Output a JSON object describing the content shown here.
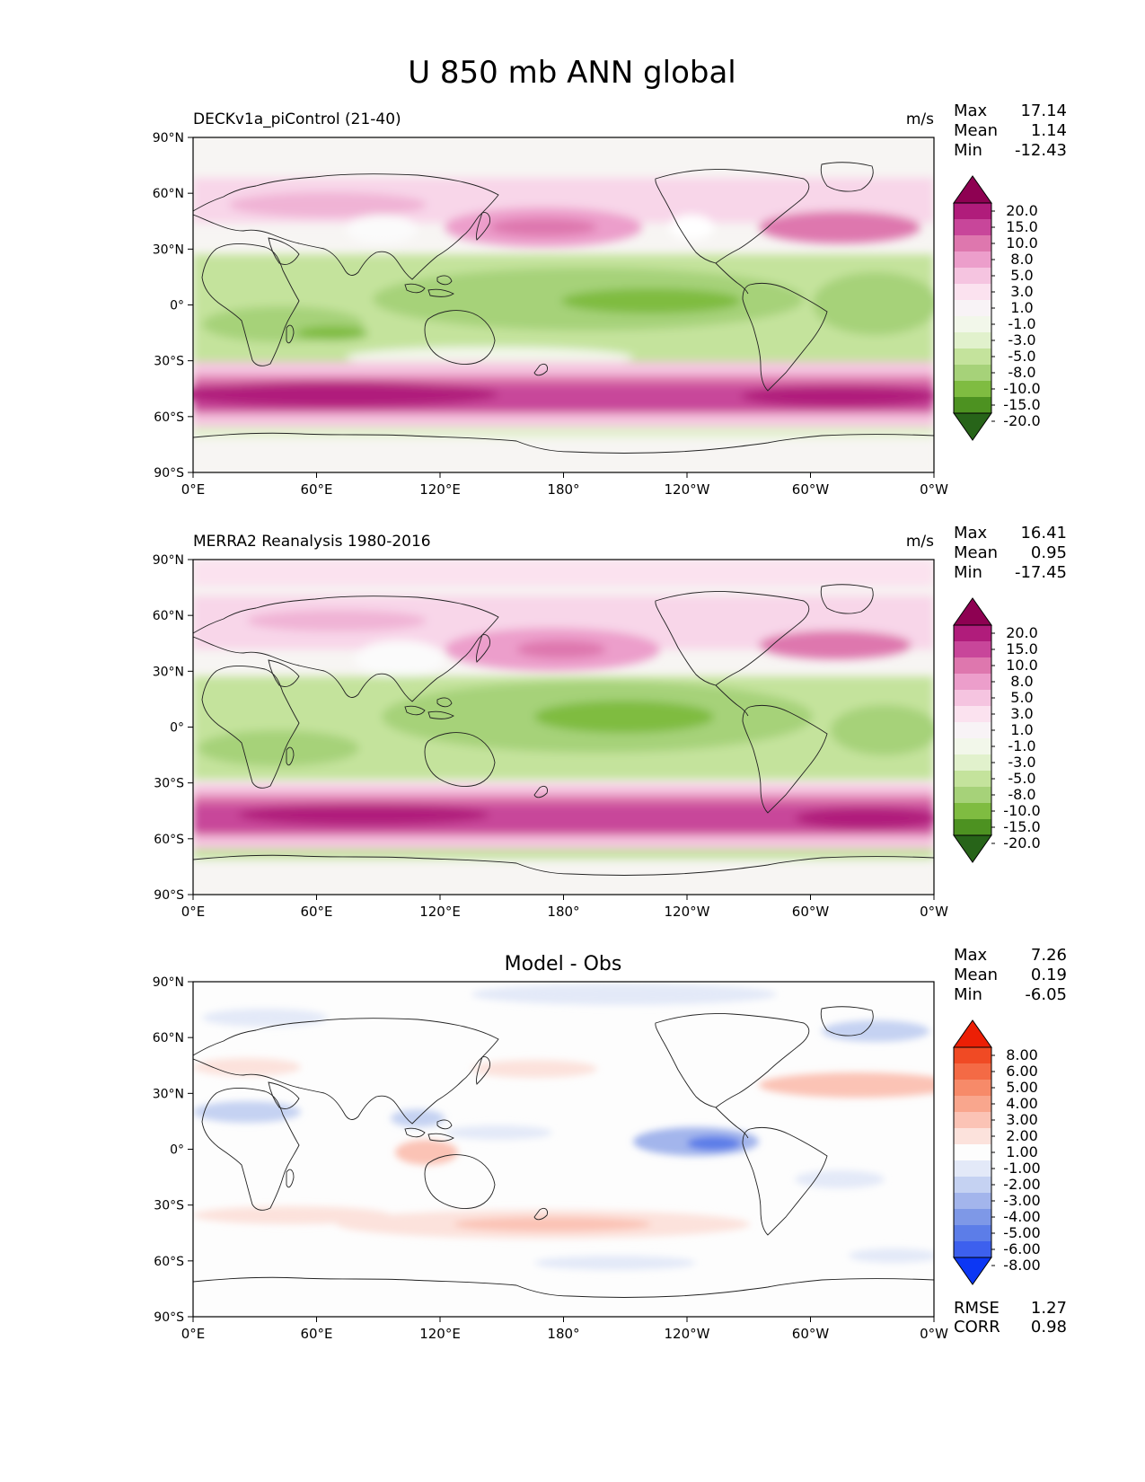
{
  "figure": {
    "title": "U 850 mb ANN global"
  },
  "axes": {
    "lat_ticks": [
      "90°N",
      "60°N",
      "30°N",
      "0°",
      "30°S",
      "60°S",
      "90°S"
    ],
    "lon_ticks": [
      "0°E",
      "60°E",
      "120°E",
      "180°",
      "120°W",
      "60°W",
      "0°W"
    ]
  },
  "stats_labels": {
    "max": "Max",
    "mean": "Mean",
    "min": "Min",
    "rmse": "RMSE",
    "corr": "CORR"
  },
  "colors": {
    "full_field": [
      "#276419",
      "#4d9221",
      "#7fbc41",
      "#a6d279",
      "#c4e39c",
      "#e1f1cc",
      "#f2f7ea",
      "#f8f3f6",
      "#fbe2ef",
      "#f5c4e0",
      "#ec9ecb",
      "#de77ae",
      "#c8469a",
      "#b01c7b",
      "#8e0152"
    ],
    "diff": [
      "#0c37f4",
      "#3d60ee",
      "#5c7de8",
      "#7e98e7",
      "#a3b5ec",
      "#c5d2f2",
      "#e3e9f8",
      "#fdfdfd",
      "#fce2dc",
      "#fbc3b5",
      "#f9a68d",
      "#f78a69",
      "#f46a45",
      "#f04a24",
      "#ec1f05"
    ]
  },
  "chart_data": [
    {
      "type": "heatmap",
      "name": "DECKv1a_piControl (21-40)",
      "title": "DECKv1a_piControl (21-40)",
      "units": "m/s",
      "xlim": [
        0,
        360
      ],
      "ylim": [
        -90,
        90
      ],
      "stats": {
        "max": "17.14",
        "mean": "1.14",
        "min": "-12.43"
      },
      "colorbar_levels": [
        "20.0",
        "15.0",
        "10.0",
        "8.0",
        "5.0",
        "3.0",
        "1.0",
        "-1.0",
        "-3.0",
        "-5.0",
        "-8.0",
        "-10.0",
        "-15.0",
        "-20.0"
      ],
      "zonal_mean_profile": [
        {
          "lat": 80,
          "u": 1.5
        },
        {
          "lat": 60,
          "u": 4
        },
        {
          "lat": 45,
          "u": 8
        },
        {
          "lat": 30,
          "u": 2
        },
        {
          "lat": 15,
          "u": -6
        },
        {
          "lat": 0,
          "u": -4
        },
        {
          "lat": -15,
          "u": -6
        },
        {
          "lat": -30,
          "u": 3
        },
        {
          "lat": -50,
          "u": 12
        },
        {
          "lat": -65,
          "u": 4
        },
        {
          "lat": -75,
          "u": -3
        }
      ]
    },
    {
      "type": "heatmap",
      "name": "MERRA2 Reanalysis 1980-2016",
      "title": "MERRA2 Reanalysis 1980-2016",
      "units": "m/s",
      "xlim": [
        0,
        360
      ],
      "ylim": [
        -90,
        90
      ],
      "stats": {
        "max": "16.41",
        "mean": "0.95",
        "min": "-17.45"
      },
      "colorbar_levels": [
        "20.0",
        "15.0",
        "10.0",
        "8.0",
        "5.0",
        "3.0",
        "1.0",
        "-1.0",
        "-3.0",
        "-5.0",
        "-8.0",
        "-10.0",
        "-15.0",
        "-20.0"
      ],
      "zonal_mean_profile": [
        {
          "lat": 80,
          "u": 1
        },
        {
          "lat": 60,
          "u": 4
        },
        {
          "lat": 45,
          "u": 7
        },
        {
          "lat": 30,
          "u": 2
        },
        {
          "lat": 15,
          "u": -6
        },
        {
          "lat": 0,
          "u": -4
        },
        {
          "lat": -15,
          "u": -6
        },
        {
          "lat": -30,
          "u": 2
        },
        {
          "lat": -50,
          "u": 11
        },
        {
          "lat": -65,
          "u": 4
        },
        {
          "lat": -75,
          "u": -3
        }
      ]
    },
    {
      "type": "heatmap",
      "name": "Model - Obs",
      "title": "Model - Obs",
      "units": "",
      "xlim": [
        0,
        360
      ],
      "ylim": [
        -90,
        90
      ],
      "stats": {
        "max": "7.26",
        "mean": "0.19",
        "min": "-6.05"
      },
      "metrics": {
        "rmse": "1.27",
        "corr": "0.98"
      },
      "colorbar_levels": [
        "8.00",
        "6.00",
        "5.00",
        "4.00",
        "3.00",
        "2.00",
        "1.00",
        "-1.00",
        "-2.00",
        "-3.00",
        "-4.00",
        "-5.00",
        "-6.00",
        "-8.00"
      ]
    }
  ]
}
